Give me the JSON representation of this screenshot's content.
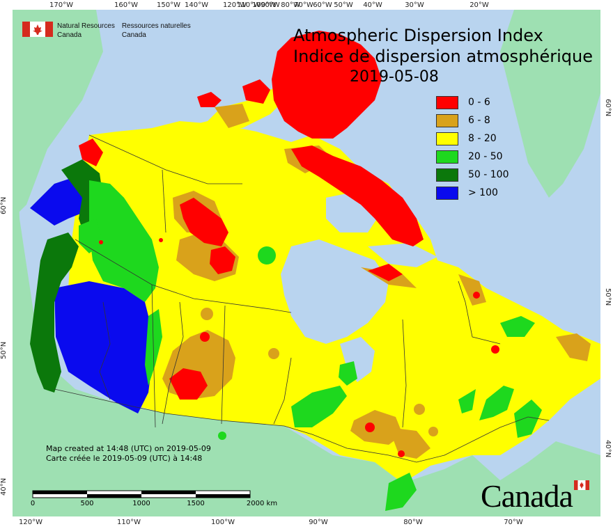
{
  "title": {
    "line1": "Atmospheric Dispersion Index",
    "line2": "Indice de dispersion atmosphérique",
    "date": "2019-05-08"
  },
  "header": {
    "org_en_1": "Natural Resources",
    "org_en_2": "Canada",
    "org_fr_1": "Ressources naturelles",
    "org_fr_2": "Canada"
  },
  "legend": [
    {
      "label": "0 - 6",
      "color": "#ff0000"
    },
    {
      "label": "6 - 8",
      "color": "#d9a21b"
    },
    {
      "label": "8 - 20",
      "color": "#ffff00"
    },
    {
      "label": "20 - 50",
      "color": "#1ed81e"
    },
    {
      "label": "50 - 100",
      "color": "#0b780b"
    },
    {
      "label": "> 100",
      "color": "#0a0aee"
    }
  ],
  "credits": {
    "line_en": "Map created at 14:48 (UTC) on 2019-05-09",
    "line_fr": "Carte créée le 2019-05-09 (UTC) à 14:48"
  },
  "scale": {
    "labels": [
      "0",
      "500",
      "1000",
      "1500",
      "2000 km"
    ]
  },
  "wordmark": "Canada",
  "graticule": {
    "top": [
      "170°W",
      "160°W",
      "150°W",
      "140°W",
      "120°W",
      "110°W",
      "100°W",
      "90°W",
      "80°W",
      "70°W",
      "60°W",
      "50°W",
      "40°W",
      "30°W",
      "20°W"
    ],
    "bottom": [
      "120°W",
      "110°W",
      "100°W",
      "90°W",
      "80°W",
      "70°W"
    ],
    "left": [
      "60°N",
      "50°N",
      "40°N"
    ],
    "right": [
      "60°N",
      "50°N",
      "40°N"
    ],
    "inner_top": [
      "120°W",
      "110°W",
      "100°W",
      "80°W",
      "70°W",
      "60°W",
      "50°W",
      "40°W"
    ],
    "inner_bottom": [
      "110°W",
      "100°W",
      "90°W",
      "80°W",
      "70°W"
    ]
  },
  "colors": {
    "water": "#b9d4ef",
    "land_outside": "#9ee0b2",
    "canada_base": "#ffff00"
  }
}
